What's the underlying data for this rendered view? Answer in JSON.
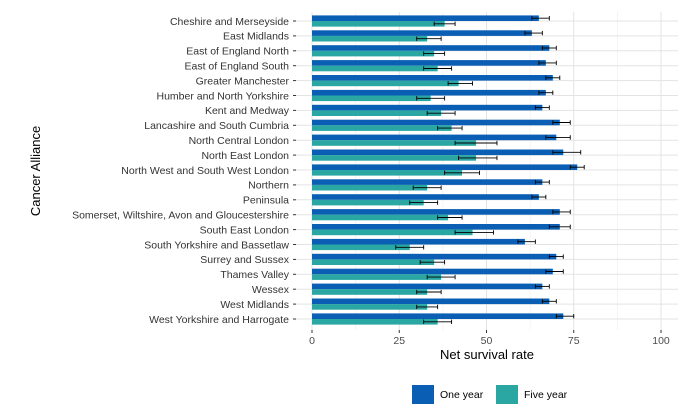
{
  "chart_data": {
    "type": "bar",
    "orientation": "horizontal",
    "xlabel": "Net survival rate",
    "ylabel": "Cancer Alliance",
    "xlim": [
      0,
      100
    ],
    "xticks": [
      0,
      25,
      50,
      75,
      100
    ],
    "grid": true,
    "legend_position": "bottom",
    "categories": [
      "Cheshire and Merseyside",
      "East Midlands",
      "East of England North",
      "East of England South",
      "Greater Manchester",
      "Humber and North Yorkshire",
      "Kent and Medway",
      "Lancashire and South Cumbria",
      "North Central London",
      "North East London",
      "North West and South West London",
      "Northern",
      "Peninsula",
      "Somerset, Wiltshire, Avon and Gloucestershire",
      "South East London",
      "South Yorkshire and Bassetlaw",
      "Surrey and Sussex",
      "Thames Valley",
      "Wessex",
      "West Midlands",
      "West Yorkshire and Harrogate"
    ],
    "series": [
      {
        "name": "One year",
        "color": "#0a5fb4",
        "values": [
          65,
          63,
          68,
          67,
          69,
          67,
          66,
          71,
          70,
          72,
          76,
          66,
          65,
          71,
          71,
          61,
          70,
          69,
          66,
          68,
          72
        ],
        "error_low": [
          63,
          61,
          66,
          65,
          67,
          65,
          64,
          69,
          67,
          69,
          74,
          64,
          63,
          69,
          68,
          59,
          68,
          67,
          64,
          66,
          70
        ],
        "error_high": [
          68,
          66,
          70,
          70,
          71,
          69,
          68,
          74,
          74,
          77,
          78,
          68,
          67,
          74,
          74,
          64,
          72,
          72,
          68,
          70,
          75
        ]
      },
      {
        "name": "Five year",
        "color": "#2aa7a3",
        "values": [
          38,
          33,
          35,
          36,
          42,
          34,
          37,
          40,
          47,
          47,
          43,
          33,
          32,
          39,
          46,
          28,
          35,
          37,
          33,
          33,
          36
        ],
        "error_low": [
          35,
          30,
          32,
          32,
          39,
          30,
          33,
          36,
          41,
          42,
          38,
          29,
          28,
          36,
          41,
          24,
          31,
          33,
          30,
          30,
          32
        ],
        "error_high": [
          41,
          37,
          38,
          40,
          46,
          38,
          41,
          43,
          53,
          53,
          48,
          37,
          36,
          43,
          52,
          32,
          38,
          41,
          37,
          36,
          40
        ]
      }
    ]
  }
}
